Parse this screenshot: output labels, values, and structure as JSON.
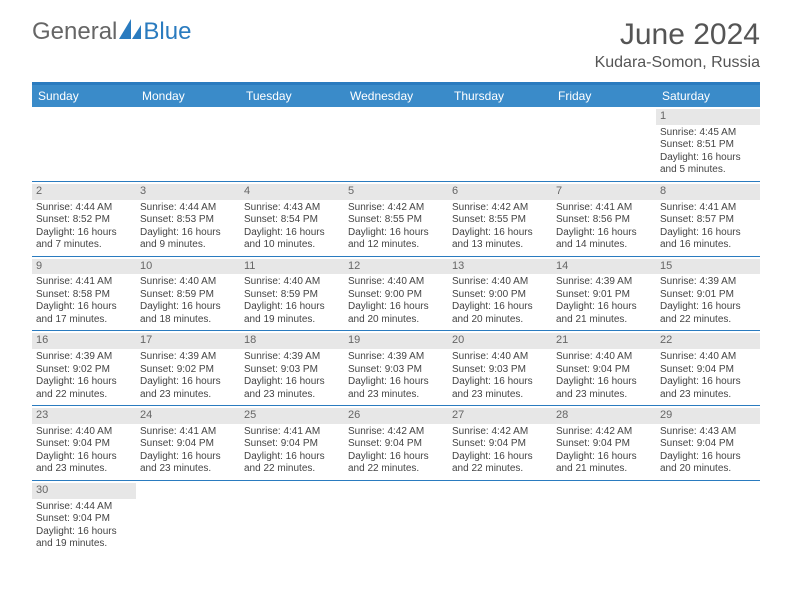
{
  "logo": {
    "general": "General",
    "blue": "Blue"
  },
  "title": "June 2024",
  "location": "Kudara-Somon, Russia",
  "colors": {
    "header_bar": "#3a8bc9",
    "accent": "#2a7bbf",
    "daynum_bg": "#e7e7e7",
    "text": "#444444",
    "title_text": "#555555"
  },
  "day_headers": [
    "Sunday",
    "Monday",
    "Tuesday",
    "Wednesday",
    "Thursday",
    "Friday",
    "Saturday"
  ],
  "weeks": [
    [
      {
        "day": "",
        "sunrise": "",
        "sunset": "",
        "daylight1": "",
        "daylight2": ""
      },
      {
        "day": "",
        "sunrise": "",
        "sunset": "",
        "daylight1": "",
        "daylight2": ""
      },
      {
        "day": "",
        "sunrise": "",
        "sunset": "",
        "daylight1": "",
        "daylight2": ""
      },
      {
        "day": "",
        "sunrise": "",
        "sunset": "",
        "daylight1": "",
        "daylight2": ""
      },
      {
        "day": "",
        "sunrise": "",
        "sunset": "",
        "daylight1": "",
        "daylight2": ""
      },
      {
        "day": "",
        "sunrise": "",
        "sunset": "",
        "daylight1": "",
        "daylight2": ""
      },
      {
        "day": "1",
        "sunrise": "Sunrise: 4:45 AM",
        "sunset": "Sunset: 8:51 PM",
        "daylight1": "Daylight: 16 hours",
        "daylight2": "and 5 minutes."
      }
    ],
    [
      {
        "day": "2",
        "sunrise": "Sunrise: 4:44 AM",
        "sunset": "Sunset: 8:52 PM",
        "daylight1": "Daylight: 16 hours",
        "daylight2": "and 7 minutes."
      },
      {
        "day": "3",
        "sunrise": "Sunrise: 4:44 AM",
        "sunset": "Sunset: 8:53 PM",
        "daylight1": "Daylight: 16 hours",
        "daylight2": "and 9 minutes."
      },
      {
        "day": "4",
        "sunrise": "Sunrise: 4:43 AM",
        "sunset": "Sunset: 8:54 PM",
        "daylight1": "Daylight: 16 hours",
        "daylight2": "and 10 minutes."
      },
      {
        "day": "5",
        "sunrise": "Sunrise: 4:42 AM",
        "sunset": "Sunset: 8:55 PM",
        "daylight1": "Daylight: 16 hours",
        "daylight2": "and 12 minutes."
      },
      {
        "day": "6",
        "sunrise": "Sunrise: 4:42 AM",
        "sunset": "Sunset: 8:55 PM",
        "daylight1": "Daylight: 16 hours",
        "daylight2": "and 13 minutes."
      },
      {
        "day": "7",
        "sunrise": "Sunrise: 4:41 AM",
        "sunset": "Sunset: 8:56 PM",
        "daylight1": "Daylight: 16 hours",
        "daylight2": "and 14 minutes."
      },
      {
        "day": "8",
        "sunrise": "Sunrise: 4:41 AM",
        "sunset": "Sunset: 8:57 PM",
        "daylight1": "Daylight: 16 hours",
        "daylight2": "and 16 minutes."
      }
    ],
    [
      {
        "day": "9",
        "sunrise": "Sunrise: 4:41 AM",
        "sunset": "Sunset: 8:58 PM",
        "daylight1": "Daylight: 16 hours",
        "daylight2": "and 17 minutes."
      },
      {
        "day": "10",
        "sunrise": "Sunrise: 4:40 AM",
        "sunset": "Sunset: 8:59 PM",
        "daylight1": "Daylight: 16 hours",
        "daylight2": "and 18 minutes."
      },
      {
        "day": "11",
        "sunrise": "Sunrise: 4:40 AM",
        "sunset": "Sunset: 8:59 PM",
        "daylight1": "Daylight: 16 hours",
        "daylight2": "and 19 minutes."
      },
      {
        "day": "12",
        "sunrise": "Sunrise: 4:40 AM",
        "sunset": "Sunset: 9:00 PM",
        "daylight1": "Daylight: 16 hours",
        "daylight2": "and 20 minutes."
      },
      {
        "day": "13",
        "sunrise": "Sunrise: 4:40 AM",
        "sunset": "Sunset: 9:00 PM",
        "daylight1": "Daylight: 16 hours",
        "daylight2": "and 20 minutes."
      },
      {
        "day": "14",
        "sunrise": "Sunrise: 4:39 AM",
        "sunset": "Sunset: 9:01 PM",
        "daylight1": "Daylight: 16 hours",
        "daylight2": "and 21 minutes."
      },
      {
        "day": "15",
        "sunrise": "Sunrise: 4:39 AM",
        "sunset": "Sunset: 9:01 PM",
        "daylight1": "Daylight: 16 hours",
        "daylight2": "and 22 minutes."
      }
    ],
    [
      {
        "day": "16",
        "sunrise": "Sunrise: 4:39 AM",
        "sunset": "Sunset: 9:02 PM",
        "daylight1": "Daylight: 16 hours",
        "daylight2": "and 22 minutes."
      },
      {
        "day": "17",
        "sunrise": "Sunrise: 4:39 AM",
        "sunset": "Sunset: 9:02 PM",
        "daylight1": "Daylight: 16 hours",
        "daylight2": "and 23 minutes."
      },
      {
        "day": "18",
        "sunrise": "Sunrise: 4:39 AM",
        "sunset": "Sunset: 9:03 PM",
        "daylight1": "Daylight: 16 hours",
        "daylight2": "and 23 minutes."
      },
      {
        "day": "19",
        "sunrise": "Sunrise: 4:39 AM",
        "sunset": "Sunset: 9:03 PM",
        "daylight1": "Daylight: 16 hours",
        "daylight2": "and 23 minutes."
      },
      {
        "day": "20",
        "sunrise": "Sunrise: 4:40 AM",
        "sunset": "Sunset: 9:03 PM",
        "daylight1": "Daylight: 16 hours",
        "daylight2": "and 23 minutes."
      },
      {
        "day": "21",
        "sunrise": "Sunrise: 4:40 AM",
        "sunset": "Sunset: 9:04 PM",
        "daylight1": "Daylight: 16 hours",
        "daylight2": "and 23 minutes."
      },
      {
        "day": "22",
        "sunrise": "Sunrise: 4:40 AM",
        "sunset": "Sunset: 9:04 PM",
        "daylight1": "Daylight: 16 hours",
        "daylight2": "and 23 minutes."
      }
    ],
    [
      {
        "day": "23",
        "sunrise": "Sunrise: 4:40 AM",
        "sunset": "Sunset: 9:04 PM",
        "daylight1": "Daylight: 16 hours",
        "daylight2": "and 23 minutes."
      },
      {
        "day": "24",
        "sunrise": "Sunrise: 4:41 AM",
        "sunset": "Sunset: 9:04 PM",
        "daylight1": "Daylight: 16 hours",
        "daylight2": "and 23 minutes."
      },
      {
        "day": "25",
        "sunrise": "Sunrise: 4:41 AM",
        "sunset": "Sunset: 9:04 PM",
        "daylight1": "Daylight: 16 hours",
        "daylight2": "and 22 minutes."
      },
      {
        "day": "26",
        "sunrise": "Sunrise: 4:42 AM",
        "sunset": "Sunset: 9:04 PM",
        "daylight1": "Daylight: 16 hours",
        "daylight2": "and 22 minutes."
      },
      {
        "day": "27",
        "sunrise": "Sunrise: 4:42 AM",
        "sunset": "Sunset: 9:04 PM",
        "daylight1": "Daylight: 16 hours",
        "daylight2": "and 22 minutes."
      },
      {
        "day": "28",
        "sunrise": "Sunrise: 4:42 AM",
        "sunset": "Sunset: 9:04 PM",
        "daylight1": "Daylight: 16 hours",
        "daylight2": "and 21 minutes."
      },
      {
        "day": "29",
        "sunrise": "Sunrise: 4:43 AM",
        "sunset": "Sunset: 9:04 PM",
        "daylight1": "Daylight: 16 hours",
        "daylight2": "and 20 minutes."
      }
    ],
    [
      {
        "day": "30",
        "sunrise": "Sunrise: 4:44 AM",
        "sunset": "Sunset: 9:04 PM",
        "daylight1": "Daylight: 16 hours",
        "daylight2": "and 19 minutes."
      },
      {
        "day": "",
        "sunrise": "",
        "sunset": "",
        "daylight1": "",
        "daylight2": ""
      },
      {
        "day": "",
        "sunrise": "",
        "sunset": "",
        "daylight1": "",
        "daylight2": ""
      },
      {
        "day": "",
        "sunrise": "",
        "sunset": "",
        "daylight1": "",
        "daylight2": ""
      },
      {
        "day": "",
        "sunrise": "",
        "sunset": "",
        "daylight1": "",
        "daylight2": ""
      },
      {
        "day": "",
        "sunrise": "",
        "sunset": "",
        "daylight1": "",
        "daylight2": ""
      },
      {
        "day": "",
        "sunrise": "",
        "sunset": "",
        "daylight1": "",
        "daylight2": ""
      }
    ]
  ]
}
